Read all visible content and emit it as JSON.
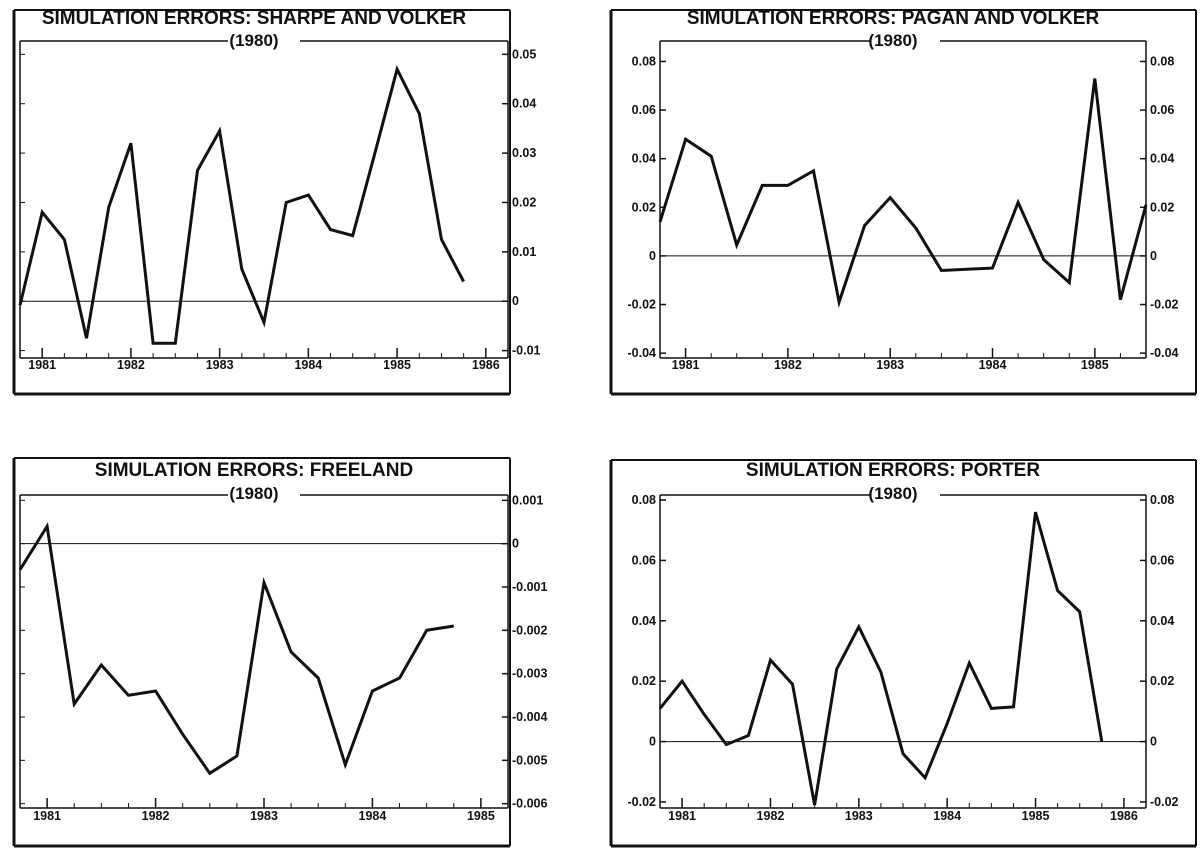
{
  "chart_data": [
    {
      "type": "line",
      "title": "SIMULATION ERRORS: SHARPE AND VOLKER",
      "subtitle": "(1980)",
      "x_ticks": [
        "1981",
        "1982",
        "1983",
        "1984",
        "1985",
        "1986"
      ],
      "x_tick_values": [
        1981.0,
        1982.0,
        1983.0,
        1984.0,
        1985.0,
        1986.0
      ],
      "xlim": [
        1980.75,
        1986.25
      ],
      "y_ticks_right": [
        "0.05",
        "0.04",
        "0.03",
        "0.02",
        "0.01",
        "0",
        "-0.01"
      ],
      "y_tick_values": [
        0.05,
        0.04,
        0.03,
        0.02,
        0.01,
        0,
        -0.01
      ],
      "ylim": [
        -0.0115,
        0.0525
      ],
      "zero_line": true,
      "series": [
        {
          "x": [
            1980.75,
            1981.0,
            1981.25,
            1981.5,
            1981.75,
            1982.0,
            1982.25,
            1982.5,
            1982.75,
            1983.0,
            1983.25,
            1983.5,
            1983.75,
            1984.0,
            1984.25,
            1984.5,
            1984.75,
            1985.0,
            1985.25,
            1985.5,
            1985.75,
            1986.0,
            1986.25
          ],
          "values": [
            -0.0008,
            0.018,
            0.0125,
            -0.0075,
            0.019,
            0.032,
            -0.0085,
            -0.0085,
            0.0265,
            0.0345,
            0.0065,
            -0.0043,
            0.02,
            0.0215,
            0.0145,
            0.0133,
            0.03,
            0.047,
            0.038,
            0.0125,
            0.004,
            null,
            null
          ]
        }
      ]
    },
    {
      "type": "line",
      "title": "SIMULATION ERRORS: PAGAN AND VOLKER",
      "subtitle": "(1980)",
      "x_ticks": [
        "1981",
        "1982",
        "1983",
        "1984",
        "1985"
      ],
      "x_tick_values": [
        1981.0,
        1982.0,
        1983.0,
        1984.0,
        1985.0
      ],
      "xlim": [
        1980.75,
        1985.5
      ],
      "y_ticks_left": [
        "0.08",
        "0.06",
        "0.04",
        "0.02",
        "0",
        "-0.02",
        "-0.04"
      ],
      "y_ticks_right": [
        "0.08",
        "0.06",
        "0.04",
        "0.02",
        "0",
        "-0.02",
        "-0.04"
      ],
      "y_tick_values": [
        0.08,
        0.06,
        0.04,
        0.02,
        0,
        -0.02,
        -0.04
      ],
      "ylim": [
        -0.042,
        0.088
      ],
      "zero_line": true,
      "series": [
        {
          "x": [
            1980.75,
            1981.0,
            1981.25,
            1981.5,
            1981.75,
            1982.0,
            1982.25,
            1982.5,
            1982.75,
            1983.0,
            1983.25,
            1983.5,
            1983.75,
            1984.0,
            1984.25,
            1984.5,
            1984.75,
            1985.0,
            1985.25,
            1985.5
          ],
          "values": [
            0.014,
            0.048,
            0.041,
            0.0045,
            0.029,
            0.029,
            0.035,
            -0.019,
            0.0125,
            0.024,
            0.0115,
            -0.006,
            -0.0055,
            -0.005,
            0.022,
            -0.0015,
            -0.011,
            0.073,
            -0.018,
            0.021
          ]
        }
      ]
    },
    {
      "type": "line",
      "title": "SIMULATION ERRORS: FREELAND",
      "subtitle": "(1980)",
      "x_ticks": [
        "1981",
        "1982",
        "1983",
        "1984",
        "1985"
      ],
      "x_tick_values": [
        1981.0,
        1982.0,
        1983.0,
        1984.0,
        1985.0
      ],
      "xlim": [
        1980.75,
        1985.25
      ],
      "y_ticks_right": [
        "0.001",
        "0",
        "-0.001",
        "-0.002",
        "-0.003",
        "-0.004",
        "-0.005",
        "-0.006"
      ],
      "y_tick_values": [
        0.001,
        0,
        -0.001,
        -0.002,
        -0.003,
        -0.004,
        -0.005,
        -0.006
      ],
      "ylim": [
        -0.0061,
        0.0011
      ],
      "zero_line": true,
      "series": [
        {
          "x": [
            1980.75,
            1981.0,
            1981.25,
            1981.5,
            1981.75,
            1982.0,
            1982.25,
            1982.5,
            1982.75,
            1983.0,
            1983.25,
            1983.5,
            1983.75,
            1984.0,
            1984.25,
            1984.5,
            1984.75,
            1985.0,
            1985.25
          ],
          "values": [
            -0.0006,
            0.0004,
            -0.0037,
            -0.0028,
            -0.0035,
            -0.0034,
            -0.0044,
            -0.0053,
            -0.0049,
            -0.0009,
            -0.0025,
            -0.0031,
            -0.0051,
            -0.0034,
            -0.0031,
            -0.002,
            -0.0019,
            null,
            null
          ]
        }
      ]
    },
    {
      "type": "line",
      "title": "SIMULATION ERRORS: PORTER",
      "subtitle": "(1980)",
      "x_ticks": [
        "1981",
        "1982",
        "1983",
        "1984",
        "1985",
        "1986"
      ],
      "x_tick_values": [
        1981.0,
        1982.0,
        1983.0,
        1984.0,
        1985.0,
        1986.0
      ],
      "xlim": [
        1980.75,
        1986.25
      ],
      "y_ticks_left": [
        "0.08",
        "0.06",
        "0.04",
        "0.02",
        "0",
        "-0.02"
      ],
      "y_ticks_right": [
        "0.08",
        "0.06",
        "0.04",
        "0.02",
        "0",
        "-0.02"
      ],
      "y_tick_values": [
        0.08,
        0.06,
        0.04,
        0.02,
        0,
        -0.02
      ],
      "ylim": [
        -0.022,
        0.082
      ],
      "zero_line": true,
      "series": [
        {
          "x": [
            1980.75,
            1981.0,
            1981.25,
            1981.5,
            1981.75,
            1982.0,
            1982.25,
            1982.5,
            1982.75,
            1983.0,
            1983.25,
            1983.5,
            1983.75,
            1984.0,
            1984.25,
            1984.5,
            1984.75,
            1985.0,
            1985.25,
            1985.5,
            1985.75,
            1986.0,
            1986.25
          ],
          "values": [
            0.011,
            0.02,
            0.009,
            -0.001,
            0.002,
            0.027,
            0.019,
            -0.021,
            0.024,
            0.038,
            0.023,
            -0.004,
            -0.012,
            0.006,
            0.026,
            0.011,
            0.0115,
            0.076,
            0.05,
            0.043,
            0.0,
            null,
            null
          ]
        }
      ]
    }
  ],
  "colors": {
    "ink": "#111111",
    "paper": "#ffffff"
  }
}
